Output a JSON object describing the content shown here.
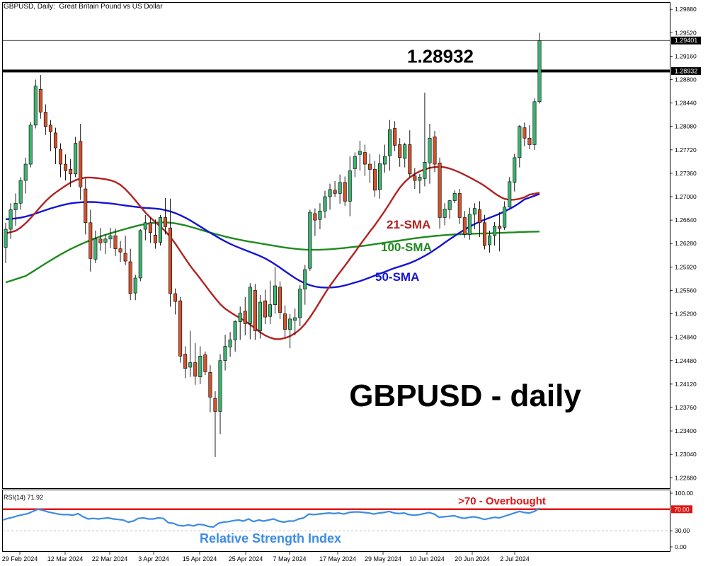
{
  "header": {
    "symbol": "GBPUSD, Daily:",
    "description": "Great Britain Pound vs US Dollar"
  },
  "chart_data": [
    {
      "type": "candlestick",
      "symbol": "GBPUSD",
      "timeframe": "Daily",
      "title": "GBPUSD - daily",
      "ylim": [
        1.2252,
        1.2998
      ],
      "y_ticks": [
        "1.29880",
        "1.29520",
        "1.29160",
        "1.28800",
        "1.28440",
        "1.28080",
        "1.27720",
        "1.27360",
        "1.27000",
        "1.26640",
        "1.26280",
        "1.25920",
        "1.25560",
        "1.25200",
        "1.24840",
        "1.24480",
        "1.24120",
        "1.23760",
        "1.23400",
        "1.23040",
        "1.22680"
      ],
      "x_labels": [
        "29 Feb 2024",
        "12 Mar 2024",
        "22 Mar 2024",
        "3 Apr 2024",
        "15 Apr 2024",
        "25 Apr 2024",
        "7 May 2024",
        "17 May 2024",
        "29 May 2024",
        "10 Jun 2024",
        "20 Jun 2024",
        "2 Jul 2024"
      ],
      "current_price_label": "1.29401",
      "current_price": 1.29401,
      "horizontal_line": {
        "value": 1.28932,
        "label": "1.28932",
        "price_tag": "1.28932"
      },
      "colors": {
        "bull": "#3cb371",
        "bear": "#d2522c",
        "sma21": "#b22222",
        "sma50": "#1414d2",
        "sma100": "#1e8a1e"
      },
      "ma_labels": {
        "sma21": "21-SMA",
        "sma100": "100-SMA",
        "sma50": "50-SMA"
      },
      "candles": [
        [
          1.2622,
          1.266,
          1.2598,
          1.265
        ],
        [
          1.265,
          1.269,
          1.2635,
          1.268
        ],
        [
          1.268,
          1.2705,
          1.2655,
          1.269
        ],
        [
          1.269,
          1.273,
          1.268,
          1.2725
        ],
        [
          1.2725,
          1.276,
          1.2705,
          1.275
        ],
        [
          1.275,
          1.2815,
          1.2745,
          1.281
        ],
        [
          1.281,
          1.288,
          1.2805,
          1.287
        ],
        [
          1.2865,
          1.2887,
          1.282,
          1.283
        ],
        [
          1.283,
          1.2842,
          1.2795,
          1.2808
        ],
        [
          1.281,
          1.2818,
          1.277,
          1.28
        ],
        [
          1.2798,
          1.2806,
          1.275,
          1.2775
        ],
        [
          1.2773,
          1.2782,
          1.273,
          1.275
        ],
        [
          1.275,
          1.2765,
          1.2725,
          1.274
        ],
        [
          1.2742,
          1.2758,
          1.2715,
          1.2735
        ],
        [
          1.2735,
          1.2792,
          1.273,
          1.2782
        ],
        [
          1.2785,
          1.2812,
          1.2695,
          1.2715
        ],
        [
          1.2712,
          1.2728,
          1.2642,
          1.266
        ],
        [
          1.266,
          1.268,
          1.2585,
          1.2605
        ],
        [
          1.2604,
          1.2648,
          1.2598,
          1.2635
        ],
        [
          1.2635,
          1.2652,
          1.2617,
          1.2629
        ],
        [
          1.263,
          1.2642,
          1.2612,
          1.2635
        ],
        [
          1.2635,
          1.2652,
          1.2621,
          1.264
        ],
        [
          1.264,
          1.2651,
          1.2609,
          1.262
        ],
        [
          1.262,
          1.2632,
          1.26,
          1.2615
        ],
        [
          1.2613,
          1.264,
          1.2595,
          1.2601
        ],
        [
          1.26,
          1.262,
          1.2541,
          1.2551
        ],
        [
          1.2552,
          1.258,
          1.2541,
          1.2575
        ],
        [
          1.2575,
          1.265,
          1.257,
          1.2648
        ],
        [
          1.265,
          1.2672,
          1.2633,
          1.266
        ],
        [
          1.266,
          1.2668,
          1.2629,
          1.2645
        ],
        [
          1.2641,
          1.2665,
          1.262,
          1.2629
        ],
        [
          1.263,
          1.2672,
          1.2625,
          1.2668
        ],
        [
          1.2668,
          1.2698,
          1.2642,
          1.2654
        ],
        [
          1.2652,
          1.2697,
          1.2531,
          1.2551
        ],
        [
          1.2551,
          1.2559,
          1.2519,
          1.2539
        ],
        [
          1.254,
          1.2546,
          1.2445,
          1.2455
        ],
        [
          1.2458,
          1.247,
          1.2421,
          1.2436
        ],
        [
          1.2438,
          1.2494,
          1.2423,
          1.2445
        ],
        [
          1.2445,
          1.2475,
          1.2411,
          1.2424
        ],
        [
          1.2423,
          1.247,
          1.2412,
          1.2455
        ],
        [
          1.2457,
          1.2462,
          1.2426,
          1.2431
        ],
        [
          1.243,
          1.2441,
          1.2369,
          1.2392
        ],
        [
          1.239,
          1.2401,
          1.23,
          1.237
        ],
        [
          1.237,
          1.2458,
          1.2335,
          1.2448
        ],
        [
          1.2448,
          1.2488,
          1.2433,
          1.247
        ],
        [
          1.2469,
          1.2492,
          1.2454,
          1.248
        ],
        [
          1.248,
          1.251,
          1.2462,
          1.2508
        ],
        [
          1.2508,
          1.2531,
          1.248,
          1.2521
        ],
        [
          1.2524,
          1.2546,
          1.2487,
          1.2505
        ],
        [
          1.2505,
          1.2567,
          1.2481,
          1.2561
        ],
        [
          1.2556,
          1.2566,
          1.248,
          1.2494
        ],
        [
          1.2494,
          1.2549,
          1.2482,
          1.2538
        ],
        [
          1.254,
          1.2557,
          1.2504,
          1.2515
        ],
        [
          1.2516,
          1.2571,
          1.2504,
          1.2534
        ],
        [
          1.2534,
          1.2592,
          1.252,
          1.2563
        ],
        [
          1.2561,
          1.257,
          1.2512,
          1.2522
        ],
        [
          1.252,
          1.2533,
          1.2484,
          1.2496
        ],
        [
          1.2496,
          1.252,
          1.2467,
          1.2512
        ],
        [
          1.251,
          1.2528,
          1.2487,
          1.2514
        ],
        [
          1.2514,
          1.2564,
          1.2501,
          1.2558
        ],
        [
          1.2558,
          1.2595,
          1.2534,
          1.2588
        ],
        [
          1.259,
          1.268,
          1.2586,
          1.2676
        ],
        [
          1.2674,
          1.2682,
          1.264,
          1.2664
        ],
        [
          1.2665,
          1.269,
          1.265,
          1.2678
        ],
        [
          1.2678,
          1.2709,
          1.2667,
          1.27
        ],
        [
          1.27,
          1.272,
          1.268,
          1.2711
        ],
        [
          1.271,
          1.2724,
          1.27,
          1.2705
        ],
        [
          1.2705,
          1.2734,
          1.2689,
          1.2722
        ],
        [
          1.2722,
          1.2731,
          1.2686,
          1.2693
        ],
        [
          1.2693,
          1.2762,
          1.267,
          1.274
        ],
        [
          1.2743,
          1.2768,
          1.273,
          1.2762
        ],
        [
          1.2765,
          1.2786,
          1.274,
          1.277
        ],
        [
          1.2768,
          1.278,
          1.2732,
          1.275
        ],
        [
          1.275,
          1.2766,
          1.2721,
          1.2742
        ],
        [
          1.2742,
          1.2755,
          1.27,
          1.271
        ],
        [
          1.2711,
          1.2765,
          1.2697,
          1.2751
        ],
        [
          1.275,
          1.278,
          1.2737,
          1.2762
        ],
        [
          1.2763,
          1.2818,
          1.274,
          1.2803
        ],
        [
          1.2805,
          1.2816,
          1.277,
          1.2779
        ],
        [
          1.278,
          1.279,
          1.2746,
          1.276
        ],
        [
          1.2759,
          1.2783,
          1.2745,
          1.278
        ],
        [
          1.278,
          1.2802,
          1.273,
          1.2735
        ],
        [
          1.2732,
          1.2744,
          1.2712,
          1.2725
        ],
        [
          1.2725,
          1.2735,
          1.2705,
          1.273
        ],
        [
          1.2728,
          1.286,
          1.2716,
          1.2753
        ],
        [
          1.2752,
          1.2812,
          1.272,
          1.279
        ],
        [
          1.2792,
          1.2801,
          1.2738,
          1.275
        ],
        [
          1.2752,
          1.276,
          1.2651,
          1.2668
        ],
        [
          1.2668,
          1.269,
          1.2656,
          1.2681
        ],
        [
          1.268,
          1.2695,
          1.2666,
          1.2694
        ],
        [
          1.2694,
          1.271,
          1.269,
          1.2705
        ],
        [
          1.2705,
          1.2712,
          1.2658,
          1.2668
        ],
        [
          1.2668,
          1.2678,
          1.2637,
          1.2642
        ],
        [
          1.2642,
          1.2683,
          1.2634,
          1.2673
        ],
        [
          1.2673,
          1.269,
          1.265,
          1.2682
        ],
        [
          1.268,
          1.2693,
          1.2638,
          1.266
        ],
        [
          1.266,
          1.2672,
          1.2619,
          1.2625
        ],
        [
          1.2626,
          1.2648,
          1.2614,
          1.264
        ],
        [
          1.264,
          1.2661,
          1.2625,
          1.2655
        ],
        [
          1.2655,
          1.2676,
          1.2616,
          1.2651
        ],
        [
          1.2653,
          1.2693,
          1.2649,
          1.2684
        ],
        [
          1.2684,
          1.273,
          1.2683,
          1.2723
        ],
        [
          1.2722,
          1.2766,
          1.2708,
          1.276
        ],
        [
          1.276,
          1.281,
          1.2745,
          1.2808
        ],
        [
          1.2806,
          1.2814,
          1.2778,
          1.279
        ],
        [
          1.279,
          1.281,
          1.2773,
          1.278
        ],
        [
          1.278,
          1.2851,
          1.2772,
          1.2846
        ],
        [
          1.2846,
          1.2952,
          1.2843,
          1.294
        ]
      ]
    },
    {
      "type": "line",
      "title": "RSI(14) 71.92",
      "series_name": "Relative Strength Index",
      "ylim": [
        0,
        100
      ],
      "y_ticks": [
        "100.00",
        "30.00",
        "0.00"
      ],
      "overbought_level": 70,
      "overbought_tag": "70.00",
      "overbought_label": ">70 - Overbought",
      "last_value": 71.92,
      "values": [
        50,
        53,
        55,
        58,
        60,
        62,
        66,
        70,
        68,
        65,
        63,
        61,
        60,
        60,
        59,
        62,
        56,
        52,
        53,
        52,
        53,
        54,
        52,
        51,
        50,
        46,
        48,
        53,
        54,
        52,
        52,
        54,
        53,
        45,
        44,
        40,
        39,
        41,
        39,
        42,
        41,
        38,
        37,
        44,
        46,
        47,
        49,
        50,
        48,
        52,
        47,
        50,
        48,
        50,
        52,
        48,
        46,
        48,
        48,
        52,
        54,
        61,
        60,
        61,
        62,
        63,
        62,
        63,
        61,
        64,
        65,
        65,
        64,
        63,
        61,
        63,
        64,
        66,
        63,
        62,
        63,
        60,
        59,
        60,
        62,
        64,
        61,
        55,
        56,
        57,
        58,
        55,
        53,
        55,
        56,
        54,
        51,
        53,
        55,
        54,
        57,
        60,
        63,
        66,
        64,
        63,
        66,
        72
      ]
    }
  ]
}
